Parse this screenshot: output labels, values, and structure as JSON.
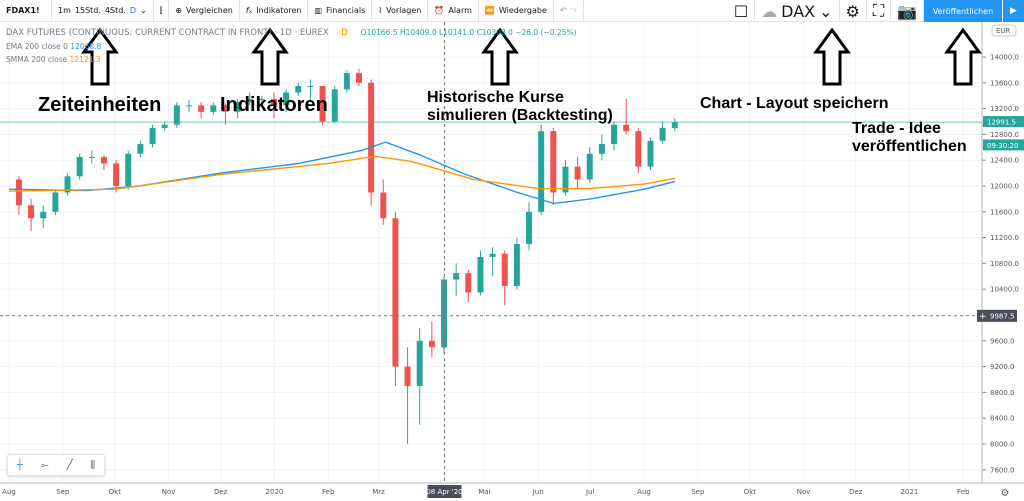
{
  "toolbar": {
    "symbol": "FDAX1!",
    "intervals": [
      "1m",
      "15Std.",
      "4Std.",
      "D"
    ],
    "active_interval": "D",
    "compare": "Vergleichen",
    "indicators": "Indikatoren",
    "financials": "Financials",
    "templates": "Vorlagen",
    "alert": "Alarm",
    "replay": "Wiedergabe",
    "layout_name": "DAX",
    "publish": "Veröffentlichen"
  },
  "legend": {
    "title": "DAX FUTURES (CONTINUOUS: CURRENT CONTRACT IN FRONT) · 1D · EUREX",
    "badge": "D",
    "ohlc": "O10166.5 H10409.0 L10141.0 C10308.0 −26.0 (−0.25%)",
    "ema_label": "EMA 200 close 0",
    "ema_value": "12068.8",
    "smma_label": "SMMA 200 close",
    "smma_value": "12121.3"
  },
  "annotations": {
    "timeframes": "Zeiteinheiten",
    "indicators": "Indikatoren",
    "backtesting": "Historische Kurse simulieren (Backtesting)",
    "layout": "Chart - Layout speichern",
    "publish": "Trade - Idee veröffentlichen"
  },
  "colors": {
    "up": "#26a69a",
    "down": "#ef5350",
    "ema": "#2196f3",
    "smma": "#ff9800",
    "accent": "#2196f3"
  },
  "chart_data": {
    "type": "candlestick",
    "currency": "EUR",
    "ylim": [
      7400,
      14250
    ],
    "y_ticks": [
      14000,
      13600,
      13200,
      12800,
      12400,
      12000,
      11600,
      11200,
      10800,
      10400,
      9600,
      9200,
      8800,
      8400,
      8000,
      7600
    ],
    "x_ticks": [
      [
        "Aug",
        "2019-08-01"
      ],
      [
        "Sep",
        "2019-09-01"
      ],
      [
        "Okt",
        "2019-10-01"
      ],
      [
        "Nov",
        "2019-11-01"
      ],
      [
        "Dez",
        "2019-12-01"
      ],
      [
        "2020",
        "2020-01-01"
      ],
      [
        "Feb",
        "2020-02-01"
      ],
      [
        "Mrz",
        "2020-03-01"
      ],
      [
        "Mai",
        "2020-05-01"
      ],
      [
        "Jun",
        "2020-06-01"
      ],
      [
        "Jul",
        "2020-07-01"
      ],
      [
        "Aug",
        "2020-08-01"
      ],
      [
        "Sep",
        "2020-09-01"
      ],
      [
        "Okt",
        "2020-10-01"
      ],
      [
        "Nov",
        "2020-11-01"
      ],
      [
        "Dez",
        "2020-12-01"
      ],
      [
        "2021",
        "2021-01-01"
      ],
      [
        "Feb",
        "2021-02-01"
      ]
    ],
    "crosshair_date": "08 Apr '20",
    "crosshair_price": "9987.5",
    "last_price": "12991.5",
    "countdown": "09:30:20",
    "candles": [
      [
        "2019-08-05",
        12100,
        12150,
        11550,
        11700
      ],
      [
        "2019-08-12",
        11700,
        11800,
        11300,
        11500
      ],
      [
        "2019-08-19",
        11500,
        11700,
        11350,
        11600
      ],
      [
        "2019-08-26",
        11600,
        11950,
        11550,
        11900
      ],
      [
        "2019-09-02",
        11900,
        12200,
        11850,
        12150
      ],
      [
        "2019-09-09",
        12150,
        12500,
        12100,
        12450
      ],
      [
        "2019-09-16",
        12450,
        12550,
        12350,
        12450
      ],
      [
        "2019-09-23",
        12450,
        12480,
        12250,
        12350
      ],
      [
        "2019-09-30",
        12350,
        12400,
        11900,
        12000
      ],
      [
        "2019-10-07",
        12000,
        12550,
        11950,
        12500
      ],
      [
        "2019-10-14",
        12500,
        12700,
        12450,
        12650
      ],
      [
        "2019-10-21",
        12650,
        12950,
        12600,
        12900
      ],
      [
        "2019-10-28",
        12900,
        13000,
        12850,
        12950
      ],
      [
        "2019-11-04",
        12950,
        13300,
        12900,
        13250
      ],
      [
        "2019-11-11",
        13250,
        13330,
        13150,
        13250
      ],
      [
        "2019-11-18",
        13250,
        13300,
        13050,
        13150
      ],
      [
        "2019-11-25",
        13150,
        13300,
        13100,
        13250
      ],
      [
        "2019-12-02",
        13250,
        13280,
        12950,
        13150
      ],
      [
        "2019-12-09",
        13150,
        13350,
        13050,
        13300
      ],
      [
        "2019-12-16",
        13300,
        13450,
        13250,
        13350
      ],
      [
        "2019-12-23",
        13350,
        13400,
        13280,
        13350
      ],
      [
        "2019-12-30",
        13350,
        13450,
        13050,
        13250
      ],
      [
        "2020-01-06",
        13250,
        13500,
        13150,
        13450
      ],
      [
        "2020-01-13",
        13450,
        13600,
        13400,
        13550
      ],
      [
        "2020-01-20",
        13550,
        13650,
        13300,
        13550
      ],
      [
        "2020-01-27",
        13550,
        13550,
        12950,
        13000
      ],
      [
        "2020-02-03",
        13000,
        13550,
        12980,
        13500
      ],
      [
        "2020-02-10",
        13500,
        13800,
        13450,
        13750
      ],
      [
        "2020-02-17",
        13750,
        13820,
        13550,
        13600
      ],
      [
        "2020-02-24",
        13600,
        13650,
        11700,
        11900
      ],
      [
        "2020-03-02",
        11900,
        12100,
        11400,
        11500
      ],
      [
        "2020-03-09",
        11500,
        11600,
        8900,
        9200
      ],
      [
        "2020-03-16",
        9200,
        9500,
        8000,
        8900
      ],
      [
        "2020-03-23",
        8900,
        9800,
        8300,
        9600
      ],
      [
        "2020-03-30",
        9600,
        9900,
        9350,
        9500
      ],
      [
        "2020-04-06",
        9500,
        10600,
        9400,
        10550
      ],
      [
        "2020-04-13",
        10550,
        10800,
        10300,
        10650
      ],
      [
        "2020-04-20",
        10650,
        10700,
        10200,
        10350
      ],
      [
        "2020-04-27",
        10350,
        11000,
        10300,
        10900
      ],
      [
        "2020-05-04",
        10900,
        11050,
        10600,
        10950
      ],
      [
        "2020-05-11",
        10950,
        11000,
        10150,
        10450
      ],
      [
        "2020-05-18",
        10450,
        11200,
        10400,
        11100
      ],
      [
        "2020-05-25",
        11100,
        11750,
        11000,
        11600
      ],
      [
        "2020-06-01",
        11600,
        12950,
        11550,
        12850
      ],
      [
        "2020-06-08",
        12850,
        12900,
        11700,
        11900
      ],
      [
        "2020-06-15",
        11900,
        12400,
        11850,
        12300
      ],
      [
        "2020-06-22",
        12300,
        12450,
        11950,
        12100
      ],
      [
        "2020-06-29",
        12100,
        12600,
        12050,
        12500
      ],
      [
        "2020-07-06",
        12500,
        12800,
        12400,
        12650
      ],
      [
        "2020-07-13",
        12650,
        13000,
        12550,
        12950
      ],
      [
        "2020-07-20",
        12950,
        13350,
        12800,
        12850
      ],
      [
        "2020-07-27",
        12850,
        12900,
        12200,
        12300
      ],
      [
        "2020-08-03",
        12300,
        12750,
        12250,
        12700
      ],
      [
        "2020-08-10",
        12700,
        13000,
        12650,
        12900
      ],
      [
        "2020-08-17",
        12900,
        13050,
        12850,
        12990
      ]
    ],
    "series": [
      {
        "name": "EMA 200 close 0",
        "points": [
          [
            "2019-08-01",
            11950
          ],
          [
            "2019-09-15",
            11930
          ],
          [
            "2019-10-15",
            12000
          ],
          [
            "2019-12-01",
            12200
          ],
          [
            "2020-01-15",
            12350
          ],
          [
            "2020-02-20",
            12550
          ],
          [
            "2020-03-05",
            12680
          ],
          [
            "2020-03-25",
            12480
          ],
          [
            "2020-04-20",
            12180
          ],
          [
            "2020-05-20",
            11900
          ],
          [
            "2020-06-10",
            11730
          ],
          [
            "2020-07-01",
            11800
          ],
          [
            "2020-08-01",
            11950
          ],
          [
            "2020-08-19",
            12070
          ]
        ]
      },
      {
        "name": "SMMA 200 close",
        "points": [
          [
            "2019-08-01",
            11920
          ],
          [
            "2019-10-01",
            11950
          ],
          [
            "2019-12-01",
            12180
          ],
          [
            "2020-02-01",
            12350
          ],
          [
            "2020-02-28",
            12460
          ],
          [
            "2020-03-20",
            12380
          ],
          [
            "2020-04-25",
            12100
          ],
          [
            "2020-06-01",
            11960
          ],
          [
            "2020-07-01",
            11960
          ],
          [
            "2020-08-01",
            12030
          ],
          [
            "2020-08-19",
            12120
          ]
        ]
      }
    ]
  }
}
